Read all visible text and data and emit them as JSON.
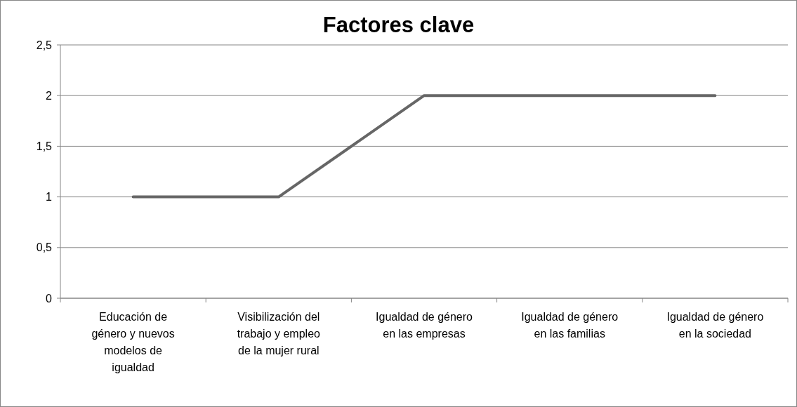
{
  "chart_data": {
    "type": "line",
    "title": "Factores clave",
    "categories": [
      "Educación de género y nuevos modelos de igualdad",
      "Visibilización del trabajo y empleo de la mujer rural",
      "Igualdad de género en las empresas",
      "Igualdad de género en las familias",
      "Igualdad de género en la sociedad"
    ],
    "series": [
      {
        "color": "#666666",
        "values": [
          1,
          1,
          2,
          2,
          2
        ]
      }
    ],
    "ylim": [
      0,
      2.5
    ],
    "yticks": [
      0,
      {
        "value": 0.5,
        "label": "0,5"
      },
      1,
      {
        "value": 1.5,
        "label": "1,5"
      },
      2,
      {
        "value": 2.5,
        "label": "2,5"
      }
    ],
    "grid": "y",
    "marker": "none",
    "line_style": "solid"
  }
}
